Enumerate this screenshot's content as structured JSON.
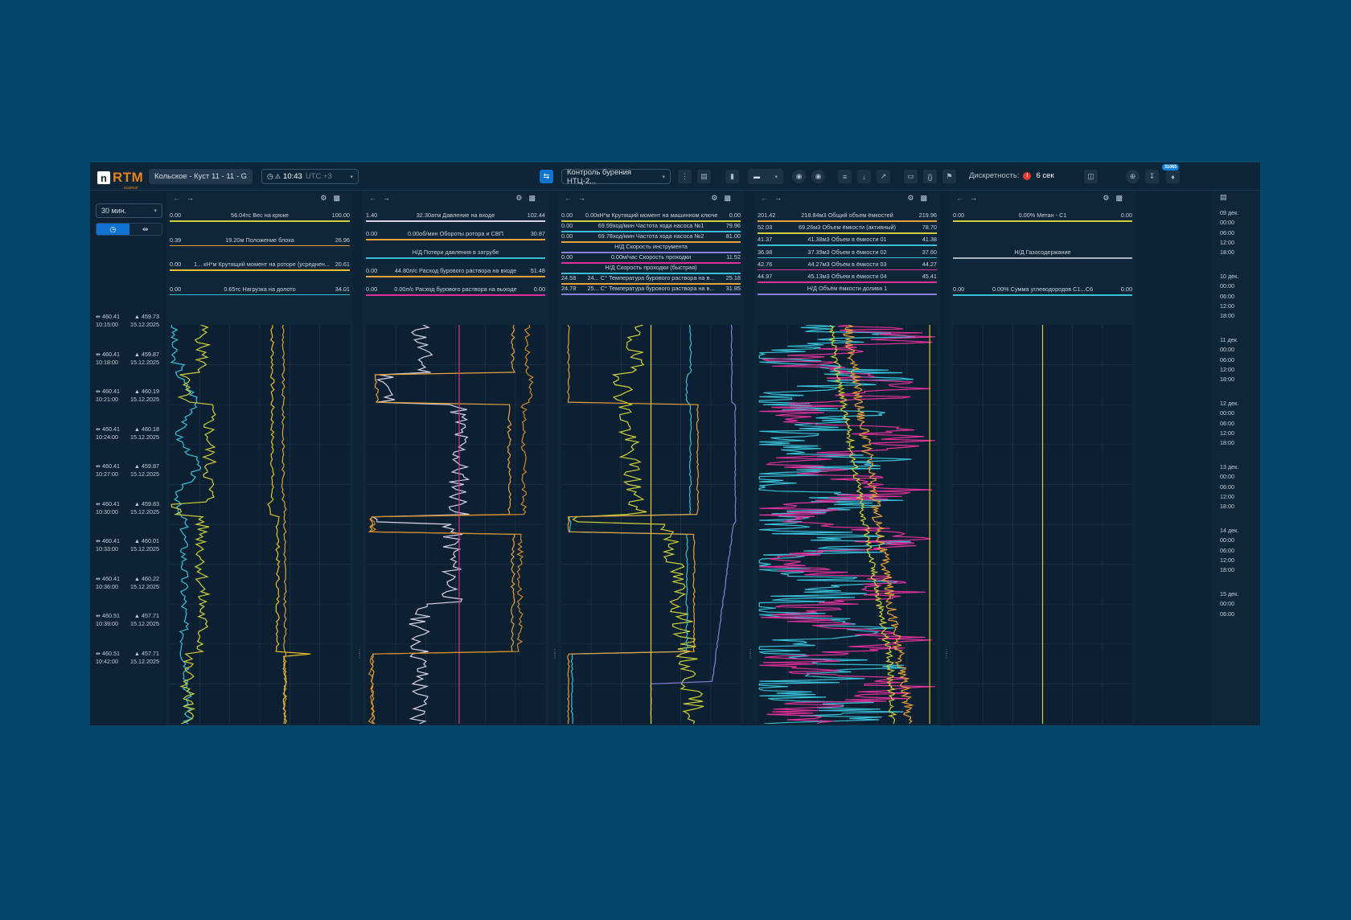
{
  "topbar": {
    "logo_letter": "n",
    "logo_text": "RTM",
    "logo_sub": "scanner",
    "well": "Кольское - Куст 11 - 11 - G",
    "time": "10:43",
    "timezone": "UTC +3",
    "profile": "Контроль бурения НТЦ-2...",
    "discreteness_label": "Дискретность:",
    "discreteness_value": "6 сек",
    "notification_count": "31065"
  },
  "left": {
    "interval": "30 мин.",
    "rows": [
      {
        "d1": "460.41",
        "d2": "459.73",
        "t": "10:15:00",
        "date": "15.12.2025"
      },
      {
        "d1": "460.41",
        "d2": "459.87",
        "t": "10:18:00",
        "date": "15.12.2025"
      },
      {
        "d1": "460.41",
        "d2": "460.19",
        "t": "10:21:00",
        "date": "15.12.2025"
      },
      {
        "d1": "460.41",
        "d2": "460.18",
        "t": "10:24:00",
        "date": "15.12.2025"
      },
      {
        "d1": "460.41",
        "d2": "459.87",
        "t": "10:27:00",
        "date": "15.12.2025"
      },
      {
        "d1": "460.41",
        "d2": "459.83",
        "t": "10:30:00",
        "date": "15.12.2025"
      },
      {
        "d1": "460.41",
        "d2": "460.01",
        "t": "10:33:00",
        "date": "15.12.2025"
      },
      {
        "d1": "460.41",
        "d2": "460.22",
        "t": "10:36:00",
        "date": "15.12.2025"
      },
      {
        "d1": "460.51",
        "d2": "457.71",
        "t": "10:39:00",
        "date": "15.12.2025"
      },
      {
        "d1": "460.51",
        "d2": "457.71",
        "t": "10:42:00",
        "date": "15.12.2025"
      }
    ]
  },
  "panels": [
    {
      "legend": [
        {
          "min": "0.00",
          "label": "56.04тс Вес на крюке",
          "max": "100.00",
          "color": "#cfcf3a"
        },
        {
          "min": "0.39",
          "label": "19.20м Положение блока",
          "max": "26.96",
          "color": "#d9a23a"
        },
        {
          "min": "0.00",
          "label": "1... кН*м Крутящий момент на роторе (усреднен...",
          "max": "20.61",
          "color": "#e8c02a"
        },
        {
          "min": "0.00",
          "label": "0.65тс Нагрузка на долото",
          "max": "34.01",
          "color": "#39c0d8"
        }
      ]
    },
    {
      "legend": [
        {
          "min": "1.40",
          "label": "32.30атм Давление на входе",
          "max": "102.44",
          "color": "#d9d2e6"
        },
        {
          "min": "0.00",
          "label": "0.00об/мин Обороты ротора и СВП",
          "max": "30.87",
          "color": "#e8a23a"
        },
        {
          "min": "",
          "label": "Н/Д Потери давления в затрубе",
          "max": "",
          "color": "#39c0d8"
        },
        {
          "min": "0.00",
          "label": "44.80л/с Расход бурового раствора на входе",
          "max": "51.48",
          "color": "#e8a23a"
        },
        {
          "min": "0.00",
          "label": "0.00л/с Расход бурового раствора на выходе",
          "max": "0.00",
          "color": "#e0309a"
        }
      ]
    },
    {
      "legend": [
        {
          "min": "0.00",
          "label": "0.00кН*м Крутящий момент на машинном ключе",
          "max": "0.00",
          "color": "#cfcf3a"
        },
        {
          "min": "0.00",
          "label": "69.59ход/мин Частота хода насоса №1",
          "max": "79.96",
          "color": "#39c0d8"
        },
        {
          "min": "0.00",
          "label": "69.78ход/мин Частота хода насоса №2",
          "max": "81.00",
          "color": "#e8a23a"
        },
        {
          "min": "",
          "label": "Н/Д Скорость инструмента",
          "max": "",
          "color": "#8a7fe0"
        },
        {
          "min": "0.00",
          "label": "0.00м/час Скорость проходки",
          "max": "11.52",
          "color": "#e0309a"
        },
        {
          "min": "",
          "label": "Н/Д Скорость проходки (быстрая)",
          "max": "",
          "color": "#39c0d8"
        },
        {
          "min": "24.58",
          "label": "24... C° Температура бурового раствора на в...",
          "max": "25.18",
          "color": "#e8a23a"
        },
        {
          "min": "24.78",
          "label": "25... C° Температура бурового раствора на в...",
          "max": "31.85",
          "color": "#8a7fe0"
        }
      ]
    },
    {
      "legend": [
        {
          "min": "201.42",
          "label": "218.84м3 Общий объем ёмкостей",
          "max": "219.96",
          "color": "#e8a23a"
        },
        {
          "min": "52.03",
          "label": "69.26м3 Объем ёмкости (активный)",
          "max": "78.70",
          "color": "#cfcf3a"
        },
        {
          "min": "41.37",
          "label": "41.38м3 Объем в ёмкости 01",
          "max": "41.38",
          "color": "#39c0d8"
        },
        {
          "min": "36.98",
          "label": "37.39м3 Объем в ёмкости 02",
          "max": "37.60",
          "color": "#39c0d8"
        },
        {
          "min": "42.76",
          "label": "44.27м3 Объем в ёмкости 03",
          "max": "44.27",
          "color": "#e0309a"
        },
        {
          "min": "44.97",
          "label": "45.13м3 Объем в ёмкости 04",
          "max": "45.41",
          "color": "#e0309a"
        },
        {
          "min": "",
          "label": "Н/Д Объём ёмкости долива 1",
          "max": "",
          "color": "#8a7fe0"
        }
      ]
    },
    {
      "legend": [
        {
          "min": "0.00",
          "label": "0.00% Метан - C1",
          "max": "0.00",
          "color": "#cfcf3a"
        },
        {
          "min": "",
          "label": "Н/Д Газосодержание",
          "max": "",
          "color": "#aab7c4"
        },
        {
          "min": "0.00",
          "label": "0.00% Сумма углеводородов C1...C6",
          "max": "0.00",
          "color": "#39c0d8"
        }
      ]
    }
  ],
  "right": {
    "days": [
      {
        "day": "09 дек.",
        "hours": [
          "00:00",
          "06:00",
          "12:00",
          "18:00"
        ]
      },
      {
        "day": "10 дек.",
        "hours": [
          "00:00",
          "06:00",
          "12:00",
          "18:00"
        ]
      },
      {
        "day": "11 дек.",
        "hours": [
          "00:00",
          "06:00",
          "12:00",
          "18:00"
        ]
      },
      {
        "day": "12 дек.",
        "hours": [
          "00:00",
          "06:00",
          "12:00",
          "18:00"
        ]
      },
      {
        "day": "13 дек.",
        "hours": [
          "00:00",
          "06:00",
          "12:00",
          "18:00"
        ]
      },
      {
        "day": "14 дек.",
        "hours": [
          "00:00",
          "06:00",
          "12:00",
          "18:00"
        ]
      },
      {
        "day": "15 дек.",
        "hours": [
          "00:00",
          "06:00"
        ]
      }
    ]
  }
}
